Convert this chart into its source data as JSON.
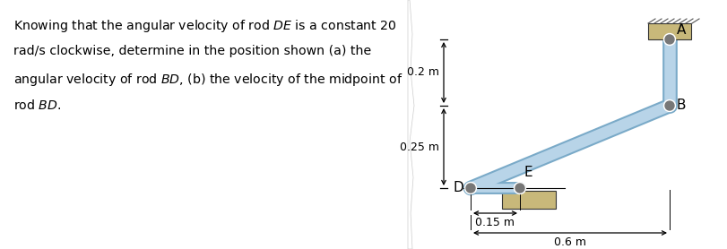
{
  "bg_color": "#f0f0f0",
  "paper_color": "#ffffff",
  "rod_color": "#b8d4e8",
  "rod_edge_color": "#7aaac8",
  "wall_color": "#c8b87a",
  "pin_color": "#777777",
  "dim_02": "0.2 m",
  "dim_025": "0.25 m",
  "dim_015": "0.15 m",
  "dim_06": "0.6 m",
  "label_A": "A",
  "label_B": "B",
  "label_D": "D",
  "label_E": "E",
  "text_line1": "Knowing that the angular velocity of rod ",
  "text_line1_it": "DE",
  "text_line1_end": " is a constant 20",
  "text_line2": "rad/s clockwise, determine in the position shown (a) the",
  "text_line3_start": "angular velocity of rod ",
  "text_line3_it": "BD",
  "text_line3_end": ", (b) the velocity of the midpoint of",
  "text_line4_start": "rod ",
  "text_line4_it": "BD",
  "text_line4_end": ".",
  "fontsize": 10.2
}
